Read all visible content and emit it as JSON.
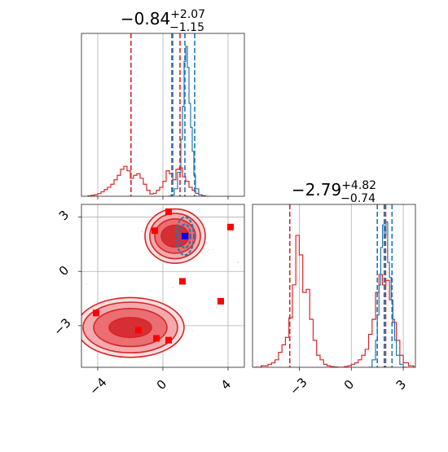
{
  "chart_data": [
    {
      "type": "line",
      "panel": "marginal-x",
      "title": "−0.84",
      "title_sup": "+2.07",
      "title_sub": "−1.15",
      "xlim": [
        -5,
        5
      ],
      "grid": true,
      "series": [
        {
          "color": "#d62728",
          "x": [
            -4.6,
            -4.4,
            -4.2,
            -4.0,
            -3.8,
            -3.6,
            -3.4,
            -3.2,
            -3.0,
            -2.8,
            -2.6,
            -2.4,
            -2.2,
            -2.0,
            -1.8,
            -1.6,
            -1.4,
            -1.2,
            -1.0,
            -0.8,
            -0.6,
            -0.4,
            -0.2,
            0.0,
            0.2,
            0.4,
            0.6,
            0.8,
            1.0,
            1.2,
            1.4,
            1.6,
            1.8,
            2.0,
            2.2,
            2.4,
            2.6
          ],
          "values": [
            0.003,
            0.006,
            0.01,
            0.018,
            0.03,
            0.045,
            0.06,
            0.08,
            0.11,
            0.14,
            0.18,
            0.2,
            0.17,
            0.12,
            0.14,
            0.15,
            0.12,
            0.08,
            0.04,
            0.015,
            0.02,
            0.04,
            0.06,
            0.1,
            0.17,
            0.15,
            0.11,
            0.18,
            0.19,
            0.13,
            0.1,
            0.06,
            0.04,
            0.02,
            0.01,
            0.004,
            0.0
          ]
        },
        {
          "color": "#1f77b4",
          "x": [
            0.3,
            0.5,
            0.7,
            0.9,
            1.1,
            1.2,
            1.3,
            1.4,
            1.5,
            1.6,
            1.7,
            1.8,
            1.9,
            2.0,
            2.2,
            2.4
          ],
          "values": [
            0.0,
            0.01,
            0.05,
            0.16,
            0.38,
            0.6,
            0.9,
            1.0,
            0.86,
            0.62,
            0.46,
            0.3,
            0.14,
            0.05,
            0.01,
            0.0
          ]
        }
      ],
      "vlines": [
        {
          "color": "#d62728",
          "x": -1.96
        },
        {
          "color": "#d62728",
          "x": 0.55
        },
        {
          "color": "#d62728",
          "x": 1.05
        },
        {
          "color": "#1f77b4",
          "x": 0.6
        },
        {
          "color": "#1f77b4",
          "x": 1.35
        },
        {
          "color": "#1f77b4",
          "x": 1.95
        }
      ]
    },
    {
      "type": "line",
      "panel": "marginal-y",
      "title": "−2.79",
      "title_sup": "+4.82",
      "title_sub": "−0.74",
      "xlim": [
        -5.7,
        3.7
      ],
      "xticks": [
        "−3",
        "0",
        "3"
      ],
      "xtick_values": [
        -3,
        0,
        3
      ],
      "grid": true,
      "series": [
        {
          "color": "#d62728",
          "x": [
            -5.6,
            -5.2,
            -4.8,
            -4.6,
            -4.4,
            -4.2,
            -4.0,
            -3.8,
            -3.6,
            -3.4,
            -3.2,
            -3.0,
            -2.8,
            -2.6,
            -2.4,
            -2.2,
            -2.0,
            -1.8,
            -1.6,
            -1.4,
            -1.2,
            -1.0,
            -0.8,
            -0.6,
            -0.4,
            -0.2,
            0.0,
            0.2,
            0.4,
            0.6,
            0.8,
            1.0,
            1.2,
            1.4,
            1.6,
            1.8,
            2.0,
            2.2,
            2.4,
            2.6,
            2.8,
            3.0,
            3.3,
            3.6
          ],
          "values": [
            0.0,
            0.01,
            0.02,
            0.03,
            0.05,
            0.1,
            0.15,
            0.2,
            0.33,
            0.55,
            0.88,
            0.75,
            0.5,
            0.52,
            0.32,
            0.18,
            0.08,
            0.05,
            0.02,
            0.01,
            0.005,
            0.002,
            0.0,
            0.0,
            0.005,
            0.01,
            0.02,
            0.03,
            0.05,
            0.08,
            0.12,
            0.22,
            0.32,
            0.5,
            0.62,
            0.55,
            0.58,
            0.45,
            0.3,
            0.18,
            0.08,
            0.03,
            0.01,
            0.0
          ]
        },
        {
          "color": "#1f77b4",
          "x": [
            1.0,
            1.2,
            1.4,
            1.5,
            1.6,
            1.7,
            1.8,
            1.9,
            2.0,
            2.1,
            2.2,
            2.3,
            2.4,
            2.5,
            2.6,
            2.8,
            3.0
          ],
          "values": [
            0.0,
            0.05,
            0.18,
            0.35,
            0.55,
            0.8,
            0.95,
            0.88,
            0.97,
            0.7,
            0.6,
            0.45,
            0.32,
            0.18,
            0.08,
            0.02,
            0.0
          ]
        }
      ],
      "vlines": [
        {
          "color": "#d62728",
          "x": -3.55
        },
        {
          "color": "#d62728",
          "x": 1.98
        },
        {
          "color": "#1f77b4",
          "x": 1.5
        },
        {
          "color": "#1f77b4",
          "x": 1.9
        },
        {
          "color": "#1f77b4",
          "x": 2.35
        }
      ]
    },
    {
      "type": "scatter",
      "panel": "joint",
      "xlim": [
        -5,
        5
      ],
      "ylim": [
        -5.3,
        3.7
      ],
      "xticks": [
        "−4",
        "0",
        "4"
      ],
      "xtick_values": [
        -4,
        0,
        4
      ],
      "yticks": [
        "−3",
        "0",
        "3"
      ],
      "ytick_values": [
        -3,
        0,
        3
      ],
      "grid": true,
      "contours": [
        {
          "cx": 0.75,
          "cy": 1.95,
          "rx": [
            1.85,
            1.55,
            1.25,
            0.85
          ],
          "ry": [
            1.5,
            1.25,
            0.95,
            0.6
          ],
          "color": "#d62728"
        },
        {
          "cx": -2.0,
          "cy": -3.1,
          "rx": [
            3.3,
            2.9,
            2.25,
            1.3
          ],
          "ry": [
            1.65,
            1.4,
            1.05,
            0.55
          ],
          "color": "#d62728"
        },
        {
          "cx": 1.35,
          "cy": 1.95,
          "rx": [
            0.55,
            0.35
          ],
          "ry": [
            1.05,
            0.65
          ],
          "color": "#1f77b4"
        }
      ],
      "red_markers": [
        {
          "x": 0.35,
          "y": 3.3
        },
        {
          "x": -0.5,
          "y": 2.25
        },
        {
          "x": 4.15,
          "y": 2.45
        },
        {
          "x": 1.2,
          "y": -0.55
        },
        {
          "x": 3.55,
          "y": -1.65
        },
        {
          "x": -4.1,
          "y": -2.3
        },
        {
          "x": -1.5,
          "y": -3.25
        },
        {
          "x": -0.4,
          "y": -3.7
        },
        {
          "x": 0.35,
          "y": -3.8
        }
      ],
      "blue_marker": {
        "x": 1.35,
        "y": 1.95
      },
      "colors": {
        "red": "#d62728",
        "blue": "#1f77b4",
        "bright_red": "#ff0000",
        "bright_blue": "#0000ff"
      }
    }
  ]
}
